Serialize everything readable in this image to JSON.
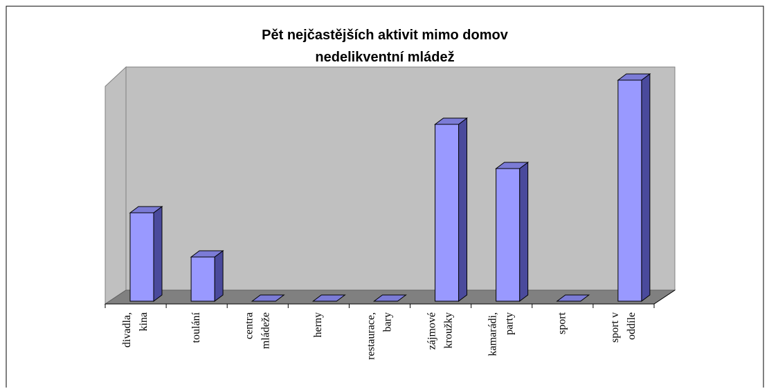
{
  "chart_data": {
    "type": "bar3d",
    "title": [
      "Pět nejčastějších aktivit mimo domov",
      "nedelikventní mládež"
    ],
    "categories": [
      "divadla,\nkina",
      "toulání",
      "centra\nmládeže",
      "herny",
      "restaurace,\nbary",
      "zájmové\nkroužky",
      "kamarádi,\nparty",
      "sport",
      "sport v\noddíle"
    ],
    "values": [
      2,
      1,
      0,
      0,
      0,
      4,
      3,
      0,
      5
    ],
    "color": "#9999ff",
    "ylim": [
      0,
      5
    ]
  }
}
